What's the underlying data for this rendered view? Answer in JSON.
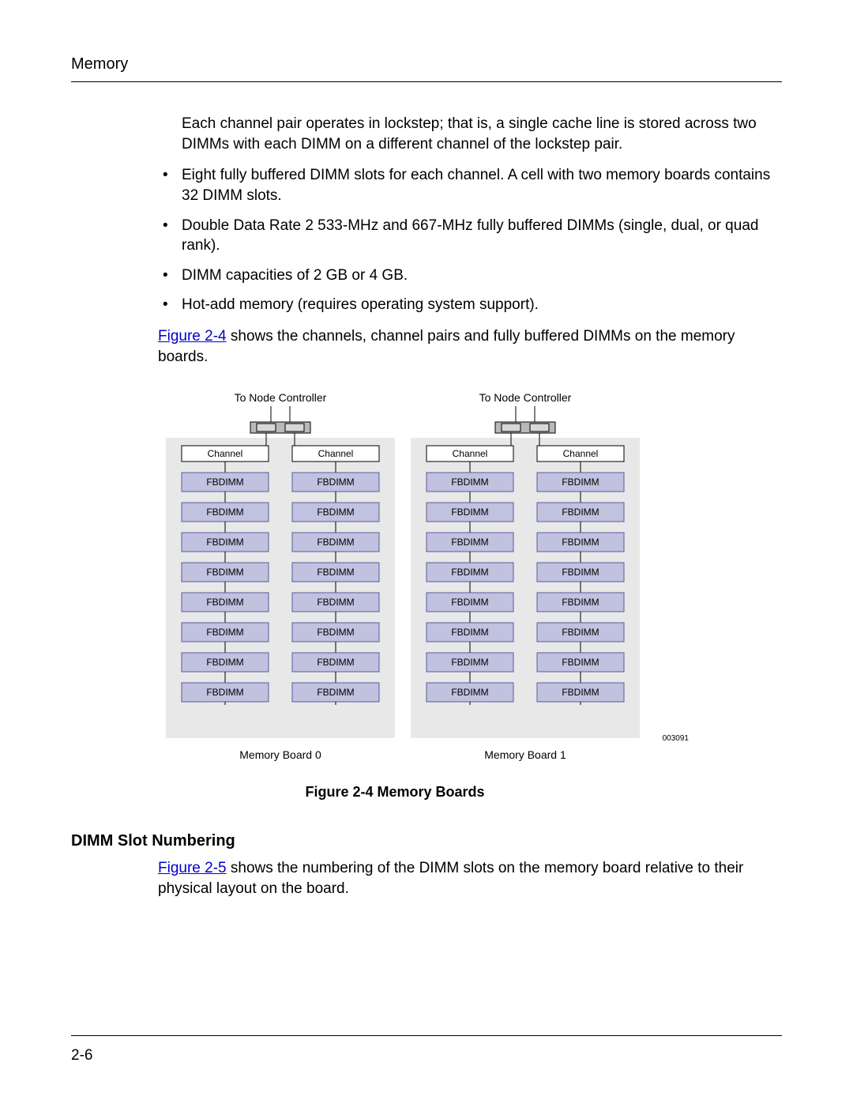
{
  "header": {
    "title": "Memory"
  },
  "intro": "Each channel pair operates in lockstep; that is, a single cache line is stored across two DIMMs with each DIMM on a different channel of the lockstep pair.",
  "bullets": [
    "Eight fully buffered DIMM slots for each channel. A cell with two memory boards contains 32 DIMM slots.",
    "Double Data Rate 2 533-MHz and 667-MHz fully buffered DIMMs (single, dual, or quad rank).",
    "DIMM capacities of 2 GB or 4 GB.",
    "Hot-add memory (requires operating system support)."
  ],
  "fig_ref_1": {
    "link": "Figure 2-4",
    "rest": " shows the channels, channel pairs and fully buffered DIMMs on the memory boards."
  },
  "figure": {
    "caption": "Figure 2-4 Memory Boards",
    "number": "003091",
    "top_label": "To Node Controller",
    "channel_label": "Channel",
    "dimm_label": "FBDIMM",
    "board_labels": [
      "Memory Board 0",
      "Memory Board 1"
    ],
    "dimm_rows": 8,
    "colors": {
      "board_bg": "#e8e8e8",
      "dimm_fill": "#c1c1e0",
      "dimm_stroke": "#5a5a9c",
      "connector_fill": "#b9b9b9",
      "line": "#000000",
      "text": "#000000"
    }
  },
  "section2": {
    "heading": "DIMM Slot Numbering",
    "link": "Figure 2-5",
    "rest": " shows the numbering of the DIMM slots on the memory board relative to their physical layout on the board."
  },
  "footer": {
    "page": "2-6"
  }
}
